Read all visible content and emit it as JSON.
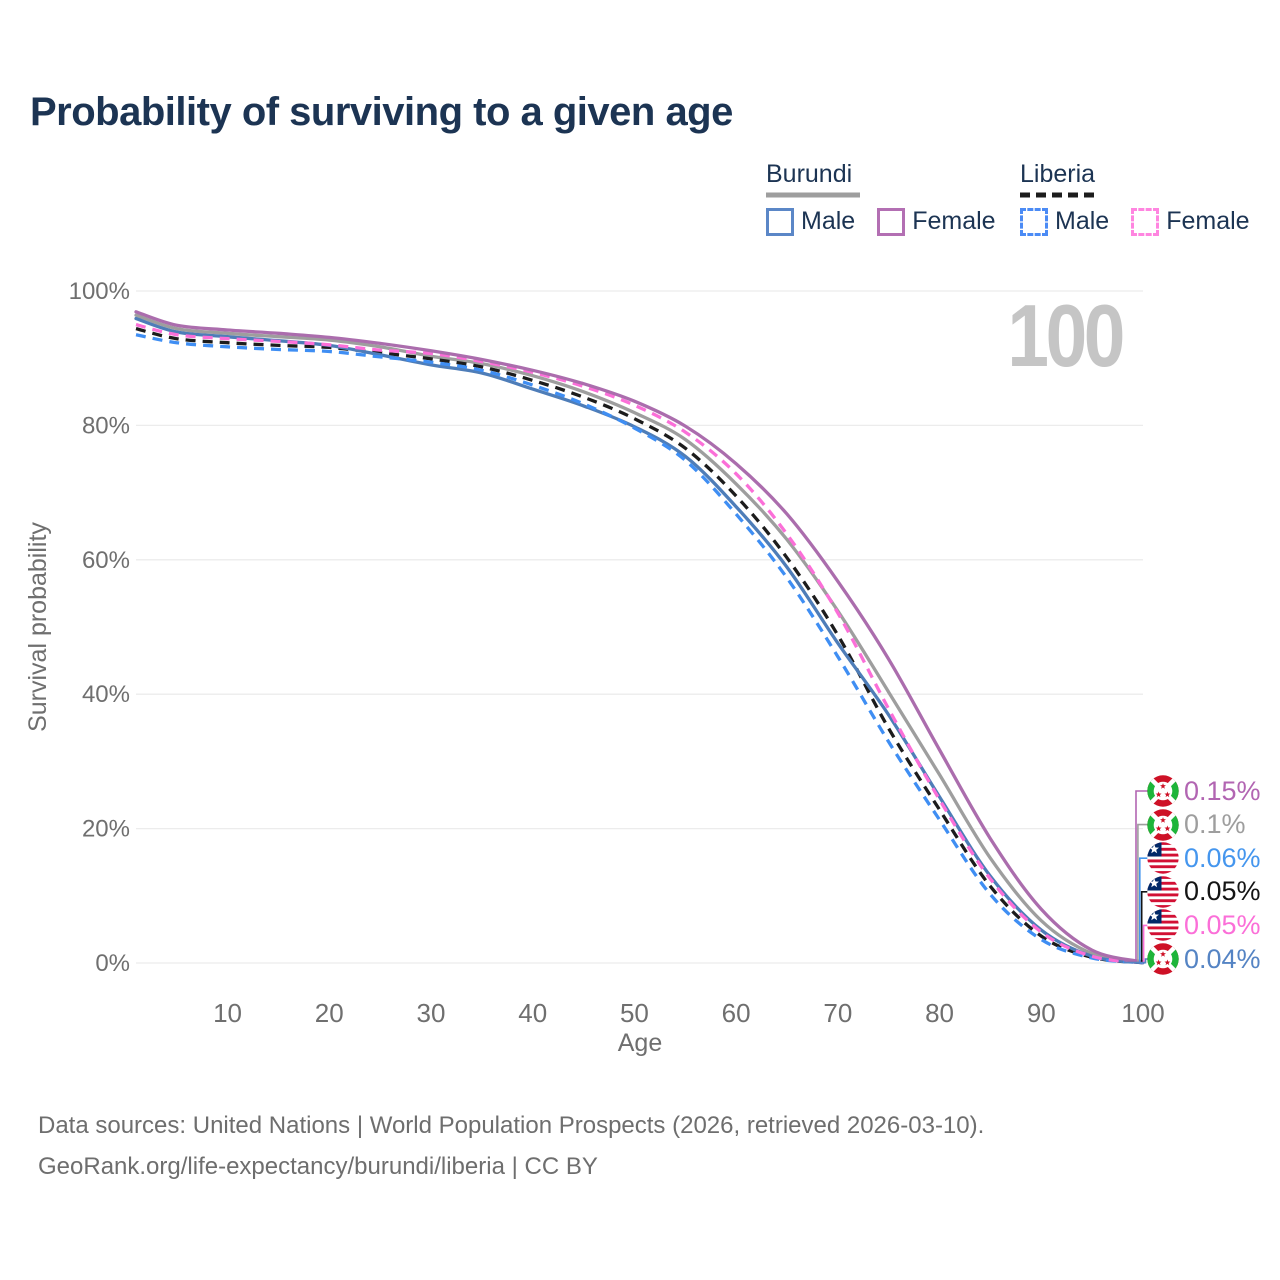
{
  "title": "Probability of surviving to a given age",
  "watermark_age": "100",
  "legend": {
    "groups": [
      {
        "country": "Burundi",
        "underline_color": "#9e9e9e",
        "underline_dashed": false,
        "items": [
          {
            "label": "Male",
            "color": "#5b87c7",
            "dashed": false
          },
          {
            "label": "Female",
            "color": "#b36fb3",
            "dashed": false
          }
        ]
      },
      {
        "country": "Liberia",
        "underline_color": "#1c1c1c",
        "underline_dashed": true,
        "items": [
          {
            "label": "Male",
            "color": "#4b8bf5",
            "dashed": true
          },
          {
            "label": "Female",
            "color": "#ff85e0",
            "dashed": true
          }
        ]
      }
    ]
  },
  "axes": {
    "x": {
      "title": "Age",
      "ticks": [
        "10",
        "20",
        "30",
        "40",
        "50",
        "60",
        "70",
        "80",
        "90",
        "100"
      ],
      "tick_values": [
        10,
        20,
        30,
        40,
        50,
        60,
        70,
        80,
        90,
        100
      ],
      "min": 1,
      "max": 100
    },
    "y": {
      "title": "Survival probability",
      "ticks": [
        "0%",
        "20%",
        "40%",
        "60%",
        "80%",
        "100%"
      ],
      "tick_values": [
        0,
        20,
        40,
        60,
        80,
        100
      ],
      "min": 0,
      "max": 100
    }
  },
  "end_labels": [
    {
      "series_id": "bf",
      "flag": "burundi",
      "text": "0.15%",
      "color": "#b265b2"
    },
    {
      "series_id": "bt",
      "flag": "burundi",
      "text": "0.1%",
      "color": "#9e9e9e"
    },
    {
      "series_id": "lm",
      "flag": "liberia",
      "text": "0.06%",
      "color": "#4596ee"
    },
    {
      "series_id": "lt",
      "flag": "liberia",
      "text": "0.05%",
      "color": "#141414"
    },
    {
      "series_id": "lf",
      "flag": "liberia",
      "text": "0.05%",
      "color": "#fb6fd8"
    },
    {
      "series_id": "bm",
      "flag": "burundi",
      "text": "0.04%",
      "color": "#5584c4"
    }
  ],
  "footer": {
    "line1": "Data sources: United Nations | World Population Prospects (2026, retrieved 2026-03-10).",
    "line2": "GeoRank.org/life-expectancy/burundi/liberia | CC BY"
  },
  "chart_data": {
    "type": "line",
    "title": "Probability of surviving to a given age",
    "xlabel": "Age",
    "ylabel": "Survival probability",
    "xlim": [
      1,
      100
    ],
    "ylim": [
      0,
      100
    ],
    "grid": true,
    "x": [
      1,
      5,
      10,
      15,
      20,
      25,
      30,
      35,
      40,
      45,
      50,
      55,
      60,
      65,
      70,
      75,
      80,
      85,
      90,
      95,
      100
    ],
    "series": [
      {
        "id": "bt",
        "name": "Burundi (both sexes)",
        "color": "#9e9e9e",
        "dashed": false,
        "values": [
          96.4,
          94.4,
          93.7,
          93.2,
          92.7,
          91.7,
          90.3,
          89.2,
          87.4,
          85.0,
          81.9,
          77.9,
          71.3,
          63.0,
          52.4,
          40.3,
          28.0,
          15.6,
          6.3,
          1.4,
          0.1
        ]
      },
      {
        "id": "lt",
        "name": "Liberia (both sexes)",
        "color": "#1c1c1c",
        "dashed": true,
        "values": [
          94.4,
          92.9,
          92.3,
          91.9,
          91.6,
          90.8,
          89.9,
          88.7,
          86.7,
          84.2,
          81.0,
          76.6,
          69.5,
          60.3,
          48.8,
          34.9,
          22.8,
          11.4,
          4.0,
          0.85,
          0.05
        ]
      },
      {
        "id": "bm",
        "name": "Burundi Male",
        "color": "#4e7db8",
        "dashed": false,
        "values": [
          95.9,
          93.9,
          93.2,
          92.6,
          91.9,
          90.5,
          89.0,
          87.8,
          85.4,
          82.9,
          79.8,
          75.4,
          67.9,
          58.9,
          47.6,
          36.9,
          24.7,
          12.9,
          4.9,
          1.0,
          0.04
        ]
      },
      {
        "id": "lm",
        "name": "Liberia Male",
        "color": "#3f8ef3",
        "dashed": true,
        "values": [
          93.5,
          92.3,
          91.7,
          91.3,
          91.0,
          90.2,
          89.4,
          88.2,
          86.0,
          83.2,
          79.6,
          74.8,
          66.8,
          57.3,
          45.6,
          32.9,
          21.3,
          10.2,
          3.5,
          0.75,
          0.06
        ]
      },
      {
        "id": "lf",
        "name": "Liberia Female",
        "color": "#fb6fd8",
        "dashed": true,
        "values": [
          95.0,
          93.5,
          92.9,
          92.5,
          92.0,
          91.2,
          90.7,
          89.5,
          87.9,
          85.8,
          83.0,
          79.0,
          72.8,
          63.8,
          52.1,
          37.8,
          24.3,
          12.5,
          4.6,
          1.0,
          0.05
        ]
      },
      {
        "id": "bf",
        "name": "Burundi Female",
        "color": "#ab6dad",
        "dashed": false,
        "values": [
          96.9,
          94.9,
          94.2,
          93.7,
          93.1,
          92.2,
          91.1,
          89.8,
          88.2,
          86.2,
          83.6,
          79.9,
          74.3,
          66.8,
          56.8,
          45.2,
          31.7,
          18.5,
          8.0,
          1.9,
          0.15
        ]
      }
    ]
  }
}
